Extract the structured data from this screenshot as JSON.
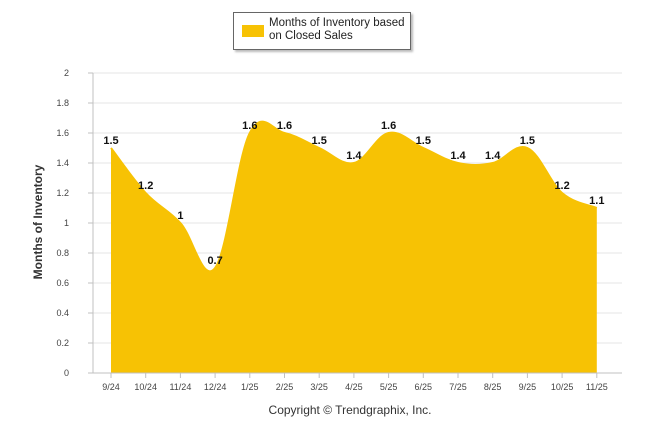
{
  "colors": {
    "area": "#F7C204",
    "grid": "#e6e6e6",
    "axis": "#c0c0c0"
  },
  "legend": {
    "label": "Months of Inventory based on Closed Sales"
  },
  "footer": {
    "copyright": "Copyright © Trendgraphix, Inc."
  },
  "chart_data": {
    "type": "area",
    "title": "",
    "xlabel": "",
    "ylabel": "Months of Inventory",
    "ylim": [
      0,
      2
    ],
    "yticks": [
      "0",
      "0.2",
      "0.4",
      "0.6",
      "0.8",
      "1",
      "1.2",
      "1.4",
      "1.6",
      "1.8",
      "2"
    ],
    "categories": [
      "9/24",
      "10/24",
      "11/24",
      "12/24",
      "1/25",
      "2/25",
      "3/25",
      "4/25",
      "5/25",
      "6/25",
      "7/25",
      "8/25",
      "9/25",
      "10/25",
      "11/25"
    ],
    "series": [
      {
        "name": "Months of Inventory based on Closed Sales",
        "values": [
          1.5,
          1.2,
          1,
          0.7,
          1.6,
          1.6,
          1.5,
          1.4,
          1.6,
          1.5,
          1.4,
          1.4,
          1.5,
          1.2,
          1.1
        ],
        "labels": [
          "1.5",
          "1.2",
          "1",
          "0.7",
          "1.6",
          "1.6",
          "1.5",
          "1.4",
          "1.6",
          "1.5",
          "1.4",
          "1.4",
          "1.5",
          "1.2",
          "1.1"
        ]
      }
    ],
    "grid": true,
    "legend_position": "top-center"
  }
}
